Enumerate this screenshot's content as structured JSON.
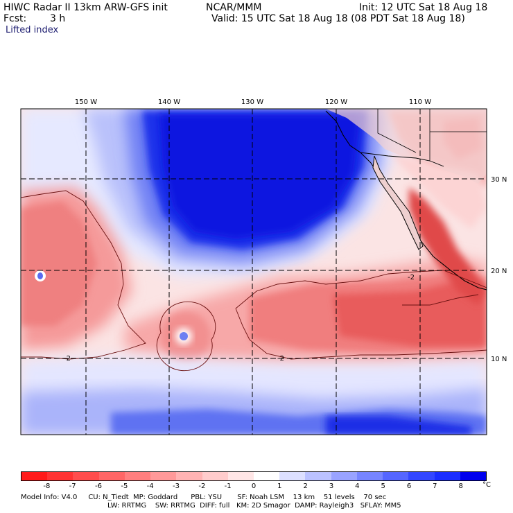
{
  "header": {
    "model_title": "HIWC Radar II 13km ARW-GFS init",
    "center": "NCAR/MMM",
    "init": "Init: 12 UTC Sat 18 Aug 18",
    "fcst_label": "Fcst:",
    "fcst_value": "3 h",
    "valid": "Valid: 15 UTC Sat 18 Aug 18 (08 PDT Sat 18 Aug 18)",
    "field": "Lifted index"
  },
  "map": {
    "lon_labels": [
      "150 W",
      "140 W",
      "130 W",
      "120 W",
      "110 W"
    ],
    "lat_labels": [
      "30 N",
      "20 N",
      "10 N"
    ],
    "contour_labels": [
      "-2",
      "-2",
      "-2"
    ]
  },
  "colorbar": {
    "ticks": [
      "-8",
      "-7",
      "-6",
      "-5",
      "-4",
      "-3",
      "-2",
      "-1",
      "0",
      "1",
      "2",
      "3",
      "4",
      "5",
      "6",
      "7",
      "8"
    ],
    "unit": "°C",
    "colors": [
      "#ff1a1a",
      "#ff3333",
      "#ff4d4d",
      "#ff6666",
      "#ff7f7f",
      "#ff9999",
      "#ffb3b3",
      "#ffcccc",
      "#ffe6e6",
      "#ffffff",
      "#dde0ff",
      "#bbc2ff",
      "#99a3ff",
      "#7785ff",
      "#5566ff",
      "#3347ff",
      "#1a2eff",
      "#0000ee"
    ]
  },
  "footer": {
    "line1": "Model Info: V4.0     CU: N_Tiedt  MP: Goddard      PBL: YSU       SF: Noah LSM    13 km    51 levels    70 sec",
    "line2": "LW: RRTMG    SW: RRTMG  DIFF: full   KM: 2D Smagor  DAMP: Rayleigh3   SFLAY: MM5"
  }
}
